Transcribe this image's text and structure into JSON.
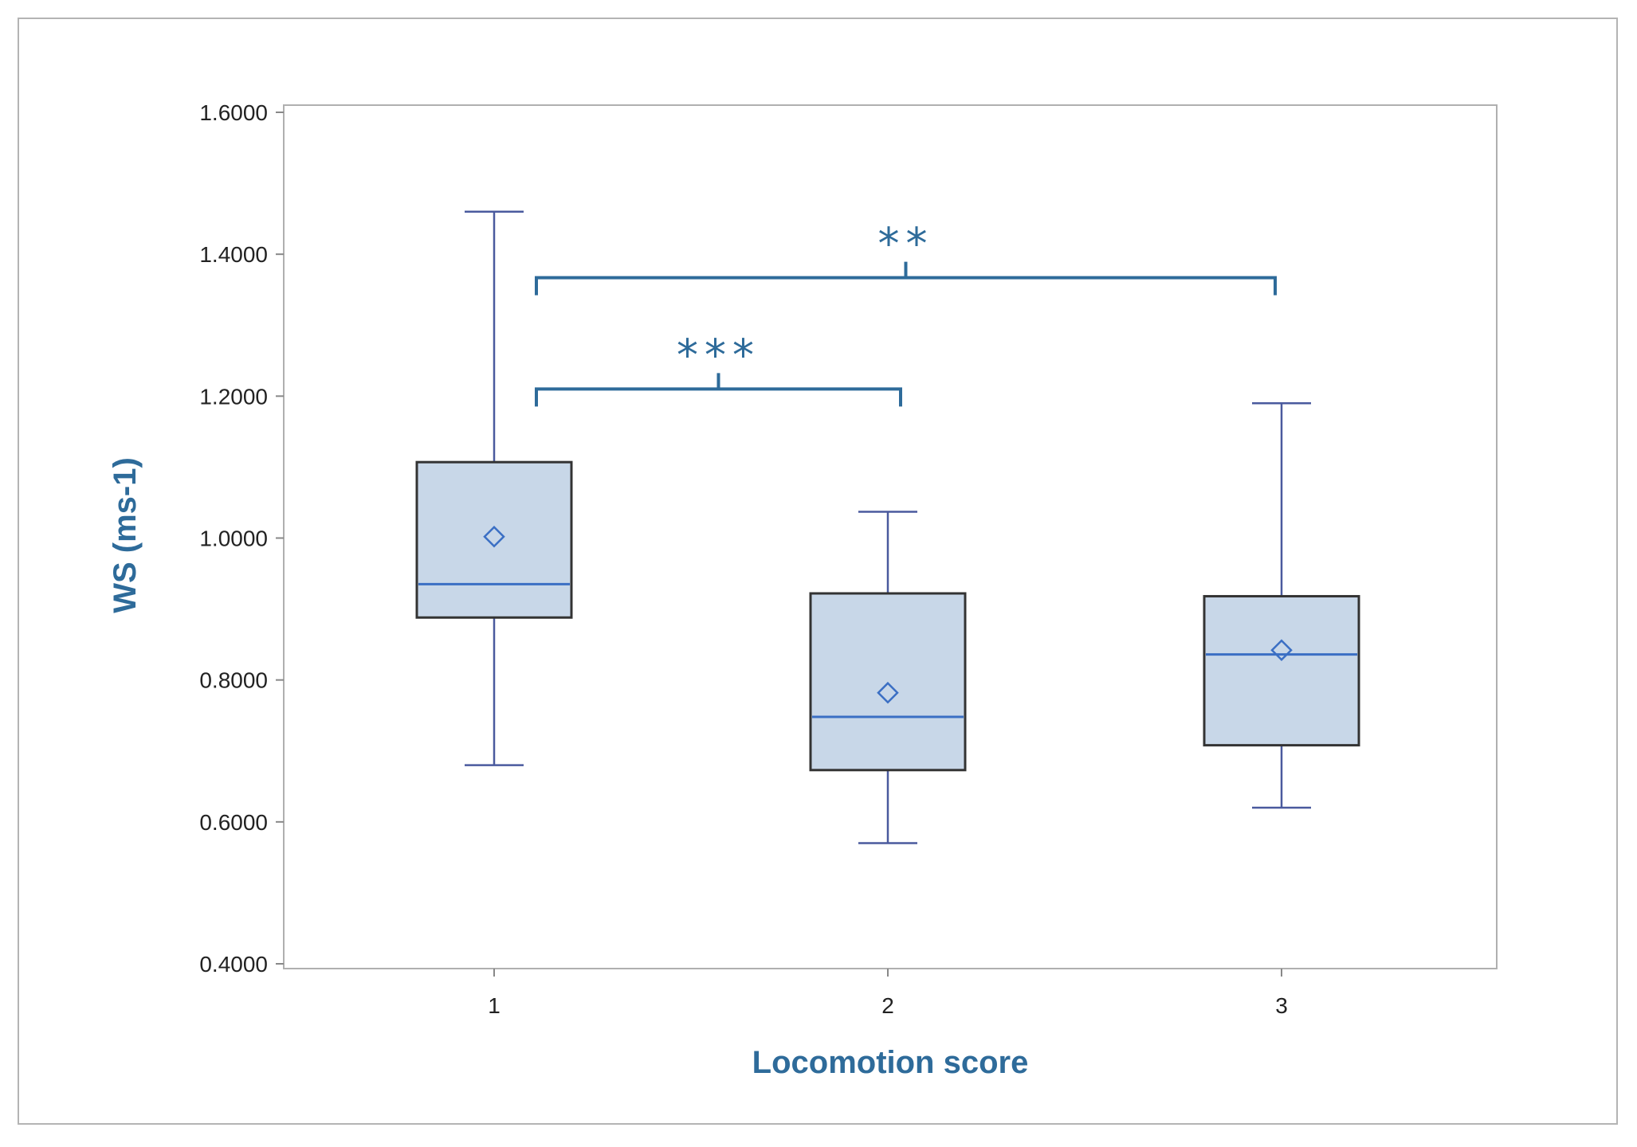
{
  "chart_data": {
    "type": "box",
    "title": "",
    "xlabel": "Locomotion score",
    "ylabel": "WS (ms-1)",
    "ylim": [
      0.4,
      1.6
    ],
    "yticks": [
      "0.4000",
      "0.6000",
      "0.8000",
      "1.0000",
      "1.2000",
      "1.4000",
      "1.6000"
    ],
    "ytick_values": [
      0.4,
      0.6,
      0.8,
      1.0,
      1.2,
      1.4,
      1.6
    ],
    "categories": [
      "1",
      "2",
      "3"
    ],
    "boxes": [
      {
        "category": "1",
        "min": 0.68,
        "q1": 0.888,
        "median": 0.935,
        "q3": 1.107,
        "max": 1.46,
        "mean": 1.002
      },
      {
        "category": "2",
        "min": 0.57,
        "q1": 0.673,
        "median": 0.748,
        "q3": 0.922,
        "max": 1.037,
        "mean": 0.782
      },
      {
        "category": "3",
        "min": 0.62,
        "q1": 0.708,
        "median": 0.836,
        "q3": 0.918,
        "max": 1.19,
        "mean": 0.842
      }
    ],
    "significance": [
      {
        "from": "1",
        "to": "3",
        "label": "**",
        "level": 1.367
      },
      {
        "from": "1",
        "to": "2",
        "label": "***",
        "level": 1.21
      }
    ]
  },
  "colors": {
    "accent": "#2e6b9a",
    "box_fill": "#c8d7e8",
    "box_edge": "#333333",
    "whisker": "#4a5a9e",
    "median": "#3b6fc4",
    "axis": "#999999"
  }
}
